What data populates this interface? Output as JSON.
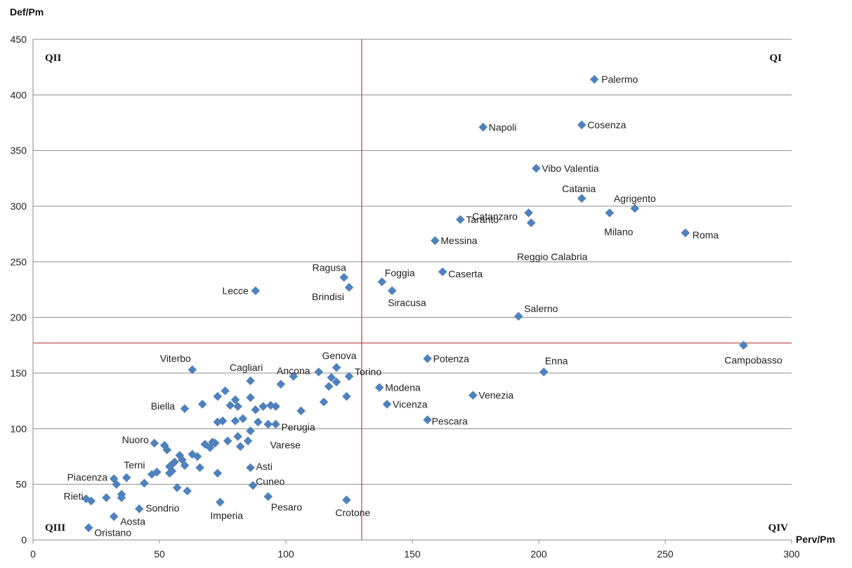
{
  "chart_data": {
    "type": "scatter",
    "xlabel": "Perv/Pm",
    "ylabel": "Def/Pm",
    "xlim": [
      0,
      300
    ],
    "ylim": [
      0,
      450
    ],
    "xticks": [
      0,
      50,
      100,
      150,
      200,
      250,
      300
    ],
    "yticks": [
      0,
      50,
      100,
      150,
      200,
      250,
      300,
      350,
      400,
      450
    ],
    "grid": "horizontal",
    "marker_color": "#4F81BD",
    "reference_line_color": "#C0504D",
    "reference_lines": {
      "x": 130,
      "y": 177
    },
    "quadrants": {
      "q1": "QI",
      "q2": "QII",
      "q3": "QIII",
      "q4": "QIV"
    },
    "points": [
      {
        "x": 222,
        "y": 414,
        "label": "Palermo"
      },
      {
        "x": 178,
        "y": 371,
        "label": "Napoli"
      },
      {
        "x": 217,
        "y": 373,
        "label": "Cosenza"
      },
      {
        "x": 199,
        "y": 334,
        "label": "Vibo Valentia"
      },
      {
        "x": 217,
        "y": 307,
        "label": "Catania"
      },
      {
        "x": 196,
        "y": 294,
        "label": "Catanzaro"
      },
      {
        "x": 238,
        "y": 298,
        "label": "Agrigento"
      },
      {
        "x": 228,
        "y": 294,
        "label": "Milano"
      },
      {
        "x": 169,
        "y": 288,
        "label": "Taranto"
      },
      {
        "x": 197,
        "y": 285,
        "label": "Reggio Calabria"
      },
      {
        "x": 258,
        "y": 276,
        "label": "Roma"
      },
      {
        "x": 159,
        "y": 269,
        "label": "Messina"
      },
      {
        "x": 162,
        "y": 241,
        "label": "Caserta"
      },
      {
        "x": 123,
        "y": 236,
        "label": "Ragusa"
      },
      {
        "x": 138,
        "y": 232,
        "label": "Foggia"
      },
      {
        "x": 125,
        "y": 227,
        "label": "Brindisi"
      },
      {
        "x": 88,
        "y": 224,
        "label": "Lecce"
      },
      {
        "x": 142,
        "y": 224,
        "label": "Siracusa"
      },
      {
        "x": 192,
        "y": 201,
        "label": "Salerno"
      },
      {
        "x": 281,
        "y": 175,
        "label": "Campobasso"
      },
      {
        "x": 156,
        "y": 163,
        "label": "Potenza"
      },
      {
        "x": 202,
        "y": 151,
        "label": "Enna"
      },
      {
        "x": 63,
        "y": 153,
        "label": "Viterbo"
      },
      {
        "x": 86,
        "y": 143,
        "label": "Cagliari"
      },
      {
        "x": 113,
        "y": 151,
        "label": "Ancona"
      },
      {
        "x": 120,
        "y": 155,
        "label": "Genova"
      },
      {
        "x": 125,
        "y": 147,
        "label": "Torino"
      },
      {
        "x": 137,
        "y": 137,
        "label": "Modena"
      },
      {
        "x": 174,
        "y": 130,
        "label": "Venezia"
      },
      {
        "x": 140,
        "y": 122,
        "label": "Vicenza"
      },
      {
        "x": 60,
        "y": 118,
        "label": "Biella"
      },
      {
        "x": 106,
        "y": 116,
        "label": "Perugia"
      },
      {
        "x": 156,
        "y": 108,
        "label": "Pescara"
      },
      {
        "x": 86,
        "y": 98,
        "label": "Varese"
      },
      {
        "x": 48,
        "y": 87,
        "label": "Nuoro"
      },
      {
        "x": 86,
        "y": 65,
        "label": "Asti"
      },
      {
        "x": 37,
        "y": 56,
        "label": "Terni"
      },
      {
        "x": 32,
        "y": 55,
        "label": "Piacenza"
      },
      {
        "x": 87,
        "y": 49,
        "label": "Cuneo"
      },
      {
        "x": 21,
        "y": 37,
        "label": "Rieti"
      },
      {
        "x": 42,
        "y": 28,
        "label": "Sondrio"
      },
      {
        "x": 74,
        "y": 34,
        "label": "Imperia"
      },
      {
        "x": 93,
        "y": 39,
        "label": "Pesaro"
      },
      {
        "x": 124,
        "y": 36,
        "label": "Crotone"
      },
      {
        "x": 32,
        "y": 21,
        "label": "Aosta"
      },
      {
        "x": 22,
        "y": 11,
        "label": "Oristano"
      },
      {
        "x": 23,
        "y": 35
      },
      {
        "x": 29,
        "y": 38
      },
      {
        "x": 33,
        "y": 50
      },
      {
        "x": 35,
        "y": 38
      },
      {
        "x": 35,
        "y": 41
      },
      {
        "x": 44,
        "y": 51
      },
      {
        "x": 47,
        "y": 59
      },
      {
        "x": 49,
        "y": 61
      },
      {
        "x": 52,
        "y": 85
      },
      {
        "x": 53,
        "y": 81
      },
      {
        "x": 54,
        "y": 66
      },
      {
        "x": 54,
        "y": 60
      },
      {
        "x": 55,
        "y": 62
      },
      {
        "x": 55,
        "y": 68
      },
      {
        "x": 56,
        "y": 70
      },
      {
        "x": 57,
        "y": 47
      },
      {
        "x": 58,
        "y": 76
      },
      {
        "x": 59,
        "y": 72
      },
      {
        "x": 60,
        "y": 67
      },
      {
        "x": 61,
        "y": 44
      },
      {
        "x": 63,
        "y": 77
      },
      {
        "x": 65,
        "y": 75
      },
      {
        "x": 66,
        "y": 65
      },
      {
        "x": 67,
        "y": 122
      },
      {
        "x": 68,
        "y": 86
      },
      {
        "x": 70,
        "y": 83
      },
      {
        "x": 71,
        "y": 88
      },
      {
        "x": 72,
        "y": 87
      },
      {
        "x": 73,
        "y": 129
      },
      {
        "x": 73,
        "y": 60
      },
      {
        "x": 73,
        "y": 106
      },
      {
        "x": 75,
        "y": 107
      },
      {
        "x": 76,
        "y": 134
      },
      {
        "x": 77,
        "y": 89
      },
      {
        "x": 78,
        "y": 121
      },
      {
        "x": 80,
        "y": 126
      },
      {
        "x": 80,
        "y": 107
      },
      {
        "x": 81,
        "y": 120
      },
      {
        "x": 81,
        "y": 93
      },
      {
        "x": 82,
        "y": 84
      },
      {
        "x": 83,
        "y": 109
      },
      {
        "x": 85,
        "y": 89
      },
      {
        "x": 86,
        "y": 128
      },
      {
        "x": 88,
        "y": 117
      },
      {
        "x": 89,
        "y": 106
      },
      {
        "x": 91,
        "y": 120
      },
      {
        "x": 93,
        "y": 104
      },
      {
        "x": 94,
        "y": 121
      },
      {
        "x": 96,
        "y": 120
      },
      {
        "x": 98,
        "y": 140
      },
      {
        "x": 103,
        "y": 147
      },
      {
        "x": 115,
        "y": 124
      },
      {
        "x": 117,
        "y": 138
      },
      {
        "x": 118,
        "y": 146
      },
      {
        "x": 120,
        "y": 142
      },
      {
        "x": 124,
        "y": 129
      },
      {
        "x": 96,
        "y": 104
      }
    ]
  }
}
